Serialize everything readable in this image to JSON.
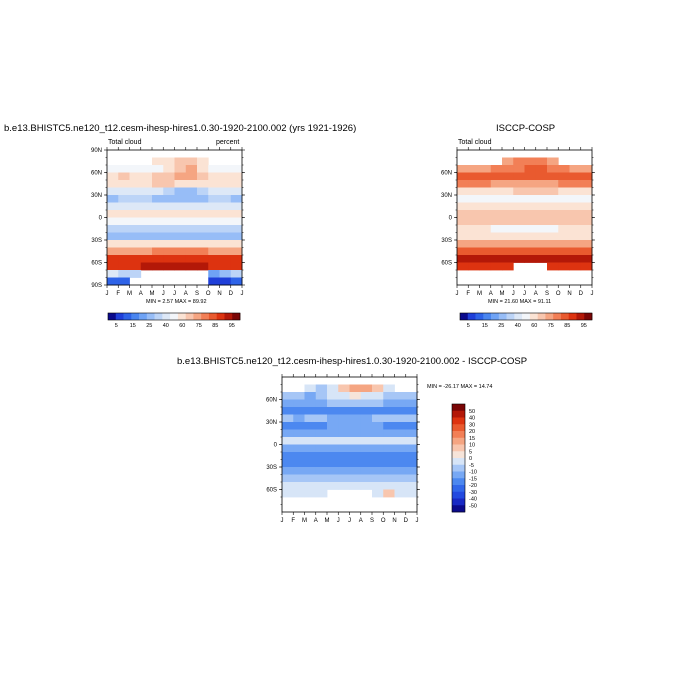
{
  "chart_data": [
    {
      "type": "heatmap",
      "title": "b.e13.BHISTC5.ne120_t12.cesm-ihesp-hires1.0.30-1920-2100.002 (yrs 1921-1926)",
      "left_label": "Total cloud",
      "right_label": "percent",
      "stats": "MIN =  2.57 MAX =  89.92",
      "x_ticks": [
        "J",
        "F",
        "M",
        "A",
        "M",
        "J",
        "J",
        "A",
        "S",
        "O",
        "N",
        "D",
        "J"
      ],
      "y_ticks": [
        "90N",
        "60N",
        "30N",
        "0",
        "30S",
        "60S",
        "90S"
      ],
      "ylim": [
        -90,
        90
      ],
      "levels": [
        5,
        10,
        15,
        20,
        25,
        30,
        40,
        50,
        60,
        65,
        70,
        75,
        80,
        85,
        90,
        95
      ],
      "colorbar_labels": [
        "5",
        "15",
        "25",
        "40",
        "60",
        "75",
        "85",
        "95"
      ],
      "colors": [
        "#0b0a8c",
        "#1f3fd9",
        "#2e63e8",
        "#4a86f0",
        "#6fa3f5",
        "#97bdf7",
        "#bcd4f7",
        "#dde8f7",
        "#f3f6fa",
        "#fbe3d4",
        "#f8c6ae",
        "#f5a582",
        "#f27f56",
        "#e95a2f",
        "#dd3310",
        "#b31808",
        "#7a0606"
      ],
      "rows": [
        {
          "lat": 85,
          "values": [
            null,
            null,
            null,
            null,
            null,
            null,
            null,
            null,
            null,
            null,
            null,
            null
          ]
        },
        {
          "lat": 75,
          "values": [
            null,
            null,
            null,
            null,
            60,
            60,
            65,
            65,
            60,
            null,
            null,
            null
          ]
        },
        {
          "lat": 65,
          "values": [
            50,
            50,
            50,
            50,
            50,
            60,
            65,
            70,
            60,
            50,
            50,
            50
          ]
        },
        {
          "lat": 55,
          "values": [
            60,
            65,
            60,
            60,
            65,
            65,
            70,
            70,
            65,
            60,
            60,
            60
          ]
        },
        {
          "lat": 45,
          "values": [
            60,
            60,
            60,
            60,
            65,
            65,
            60,
            60,
            60,
            60,
            60,
            60
          ]
        },
        {
          "lat": 35,
          "values": [
            40,
            40,
            40,
            40,
            40,
            30,
            25,
            25,
            30,
            40,
            40,
            40
          ]
        },
        {
          "lat": 25,
          "values": [
            25,
            30,
            30,
            30,
            25,
            25,
            25,
            25,
            25,
            30,
            30,
            25
          ]
        },
        {
          "lat": 15,
          "values": [
            40,
            40,
            40,
            40,
            40,
            40,
            40,
            40,
            40,
            40,
            40,
            40
          ]
        },
        {
          "lat": 5,
          "values": [
            60,
            60,
            60,
            60,
            60,
            60,
            60,
            60,
            60,
            60,
            60,
            60
          ]
        },
        {
          "lat": -5,
          "values": [
            50,
            50,
            50,
            50,
            50,
            50,
            50,
            50,
            50,
            50,
            50,
            50
          ]
        },
        {
          "lat": -15,
          "values": [
            30,
            30,
            30,
            30,
            30,
            30,
            30,
            30,
            30,
            30,
            30,
            30
          ]
        },
        {
          "lat": -25,
          "values": [
            25,
            25,
            25,
            25,
            25,
            25,
            25,
            25,
            25,
            25,
            25,
            25
          ]
        },
        {
          "lat": -35,
          "values": [
            60,
            60,
            60,
            60,
            60,
            60,
            60,
            60,
            60,
            60,
            60,
            60
          ]
        },
        {
          "lat": -45,
          "values": [
            70,
            70,
            70,
            70,
            75,
            75,
            75,
            75,
            75,
            70,
            70,
            70
          ]
        },
        {
          "lat": -55,
          "values": [
            85,
            85,
            85,
            85,
            85,
            85,
            85,
            85,
            85,
            85,
            85,
            85
          ]
        },
        {
          "lat": -65,
          "values": [
            85,
            85,
            85,
            90,
            90,
            90,
            90,
            90,
            90,
            85,
            85,
            85
          ]
        },
        {
          "lat": -75,
          "values": [
            40,
            30,
            30,
            null,
            null,
            null,
            null,
            null,
            null,
            20,
            25,
            35
          ]
        },
        {
          "lat": -85,
          "values": [
            10,
            10,
            null,
            null,
            null,
            null,
            null,
            null,
            null,
            5,
            5,
            10
          ]
        }
      ]
    },
    {
      "type": "heatmap",
      "title": "ISCCP-COSP",
      "left_label": "Total cloud",
      "stats": "MIN =  21.60 MAX =  91.11",
      "x_ticks": [
        "J",
        "F",
        "M",
        "A",
        "M",
        "J",
        "J",
        "A",
        "S",
        "O",
        "N",
        "D",
        "J"
      ],
      "y_ticks": [
        "60N",
        "30N",
        "0",
        "30S",
        "60S"
      ],
      "ylim": [
        -90,
        90
      ],
      "levels": [
        5,
        10,
        15,
        20,
        25,
        30,
        40,
        50,
        60,
        65,
        70,
        75,
        80,
        85,
        90,
        95
      ],
      "colorbar_labels": [
        "5",
        "15",
        "25",
        "40",
        "60",
        "75",
        "85",
        "95"
      ],
      "colors": [
        "#0b0a8c",
        "#1f3fd9",
        "#2e63e8",
        "#4a86f0",
        "#6fa3f5",
        "#97bdf7",
        "#bcd4f7",
        "#dde8f7",
        "#f3f6fa",
        "#fbe3d4",
        "#f8c6ae",
        "#f5a582",
        "#f27f56",
        "#e95a2f",
        "#dd3310",
        "#b31808",
        "#7a0606"
      ],
      "rows": [
        {
          "lat": 85,
          "values": [
            null,
            null,
            null,
            null,
            null,
            null,
            null,
            null,
            null,
            null,
            null,
            null
          ]
        },
        {
          "lat": 75,
          "values": [
            null,
            null,
            null,
            null,
            70,
            75,
            75,
            75,
            70,
            null,
            null,
            null
          ]
        },
        {
          "lat": 65,
          "values": [
            70,
            70,
            70,
            75,
            75,
            75,
            80,
            80,
            75,
            75,
            70,
            70
          ]
        },
        {
          "lat": 55,
          "values": [
            80,
            80,
            80,
            80,
            80,
            80,
            80,
            80,
            80,
            80,
            80,
            80
          ]
        },
        {
          "lat": 45,
          "values": [
            75,
            75,
            75,
            70,
            70,
            70,
            70,
            70,
            70,
            75,
            75,
            75
          ]
        },
        {
          "lat": 35,
          "values": [
            60,
            60,
            60,
            60,
            60,
            65,
            65,
            65,
            65,
            60,
            60,
            60
          ]
        },
        {
          "lat": 25,
          "values": [
            50,
            50,
            50,
            50,
            50,
            50,
            50,
            50,
            50,
            50,
            50,
            50
          ]
        },
        {
          "lat": 15,
          "values": [
            60,
            60,
            60,
            60,
            60,
            60,
            60,
            60,
            60,
            60,
            60,
            60
          ]
        },
        {
          "lat": 5,
          "values": [
            65,
            65,
            65,
            65,
            65,
            65,
            65,
            65,
            65,
            65,
            65,
            65
          ]
        },
        {
          "lat": -5,
          "values": [
            65,
            65,
            65,
            65,
            65,
            65,
            65,
            65,
            65,
            65,
            65,
            65
          ]
        },
        {
          "lat": -15,
          "values": [
            60,
            60,
            60,
            50,
            50,
            50,
            50,
            50,
            50,
            60,
            60,
            60
          ]
        },
        {
          "lat": -25,
          "values": [
            60,
            60,
            60,
            60,
            60,
            60,
            60,
            60,
            60,
            60,
            60,
            60
          ]
        },
        {
          "lat": -35,
          "values": [
            70,
            70,
            70,
            70,
            70,
            70,
            70,
            70,
            70,
            70,
            70,
            70
          ]
        },
        {
          "lat": -45,
          "values": [
            80,
            80,
            80,
            80,
            80,
            80,
            80,
            80,
            80,
            80,
            80,
            80
          ]
        },
        {
          "lat": -55,
          "values": [
            90,
            90,
            90,
            90,
            90,
            90,
            90,
            90,
            90,
            90,
            90,
            90
          ]
        },
        {
          "lat": -65,
          "values": [
            85,
            85,
            85,
            85,
            85,
            null,
            null,
            null,
            85,
            85,
            85,
            85
          ]
        },
        {
          "lat": -75,
          "values": [
            null,
            null,
            null,
            null,
            null,
            null,
            null,
            null,
            null,
            null,
            null,
            null
          ]
        },
        {
          "lat": -85,
          "values": [
            null,
            null,
            null,
            null,
            null,
            null,
            null,
            null,
            null,
            null,
            null,
            null
          ]
        }
      ]
    },
    {
      "type": "heatmap",
      "title": "b.e13.BHISTC5.ne120_t12.cesm-ihesp-hires1.0.30-1920-2100.002 - ISCCP-COSP",
      "stats": "MIN = -26.17 MAX =  14.74",
      "x_ticks": [
        "J",
        "F",
        "M",
        "A",
        "M",
        "J",
        "J",
        "A",
        "S",
        "O",
        "N",
        "D",
        "J"
      ],
      "y_ticks": [
        "60N",
        "30N",
        "0",
        "30S",
        "60S"
      ],
      "ylim": [
        -90,
        90
      ],
      "levels": [
        -50,
        -40,
        -30,
        -20,
        -15,
        -10,
        -5,
        0,
        5,
        10,
        15,
        20,
        30,
        40,
        50
      ],
      "colorbar_labels": [
        "50",
        "40",
        "30",
        "20",
        "15",
        "10",
        "5",
        "0",
        "-5",
        "-10",
        "-15",
        "-20",
        "-30",
        "-40",
        "-50"
      ],
      "colors": [
        "#0b0a8c",
        "#1829c4",
        "#2249e0",
        "#3167ea",
        "#4c88f0",
        "#77a8f4",
        "#a6c6f6",
        "#d7e5f7",
        "#f6e4d9",
        "#f8c6ae",
        "#f5a582",
        "#f27f56",
        "#e95a2f",
        "#dd3310",
        "#b31808",
        "#7a0606"
      ],
      "rows": [
        {
          "lat": 85,
          "values": [
            null,
            null,
            null,
            null,
            null,
            null,
            null,
            null,
            null,
            null,
            null,
            null
          ]
        },
        {
          "lat": 75,
          "values": [
            null,
            null,
            -5,
            -10,
            -5,
            5,
            10,
            10,
            5,
            -5,
            null,
            null
          ]
        },
        {
          "lat": 65,
          "values": [
            -10,
            -10,
            -15,
            -10,
            -5,
            -5,
            0,
            -5,
            -5,
            -10,
            -10,
            -10
          ]
        },
        {
          "lat": 55,
          "values": [
            -15,
            -15,
            -15,
            -15,
            -10,
            -10,
            -10,
            -10,
            -10,
            -15,
            -15,
            -15
          ]
        },
        {
          "lat": 45,
          "values": [
            -20,
            -20,
            -20,
            -20,
            -20,
            -20,
            -20,
            -20,
            -20,
            -20,
            -20,
            -20
          ]
        },
        {
          "lat": 35,
          "values": [
            -10,
            -15,
            -10,
            -10,
            -15,
            -15,
            -15,
            -15,
            -10,
            -10,
            -10,
            -10
          ]
        },
        {
          "lat": 25,
          "values": [
            -20,
            -20,
            -20,
            -20,
            -15,
            -15,
            -15,
            -15,
            -15,
            -20,
            -20,
            -20
          ]
        },
        {
          "lat": 15,
          "values": [
            -15,
            -15,
            -15,
            -15,
            -15,
            -15,
            -15,
            -15,
            -15,
            -15,
            -15,
            -15
          ]
        },
        {
          "lat": 5,
          "values": [
            -5,
            -5,
            -5,
            -5,
            -5,
            -5,
            -5,
            -5,
            -5,
            -5,
            -5,
            -5
          ]
        },
        {
          "lat": -5,
          "values": [
            -15,
            -15,
            -15,
            -15,
            -15,
            -15,
            -15,
            -15,
            -15,
            -15,
            -15,
            -15
          ]
        },
        {
          "lat": -15,
          "values": [
            -20,
            -20,
            -20,
            -20,
            -20,
            -20,
            -20,
            -20,
            -20,
            -20,
            -20,
            -20
          ]
        },
        {
          "lat": -25,
          "values": [
            -20,
            -20,
            -20,
            -20,
            -20,
            -20,
            -20,
            -20,
            -20,
            -20,
            -20,
            -20
          ]
        },
        {
          "lat": -35,
          "values": [
            -15,
            -15,
            -15,
            -15,
            -15,
            -15,
            -15,
            -15,
            -15,
            -15,
            -15,
            -15
          ]
        },
        {
          "lat": -45,
          "values": [
            -10,
            -10,
            -10,
            -10,
            -10,
            -10,
            -10,
            -10,
            -10,
            -10,
            -10,
            -10
          ]
        },
        {
          "lat": -55,
          "values": [
            -5,
            -5,
            -5,
            -5,
            -5,
            -5,
            -5,
            -5,
            -5,
            -5,
            -5,
            -5
          ]
        },
        {
          "lat": -65,
          "values": [
            -5,
            -5,
            -5,
            -5,
            null,
            null,
            null,
            null,
            -5,
            5,
            -5,
            -5
          ]
        },
        {
          "lat": -75,
          "values": [
            null,
            null,
            null,
            null,
            null,
            null,
            null,
            null,
            null,
            null,
            null,
            null
          ]
        },
        {
          "lat": -85,
          "values": [
            null,
            null,
            null,
            null,
            null,
            null,
            null,
            null,
            null,
            null,
            null,
            null
          ]
        }
      ]
    }
  ]
}
